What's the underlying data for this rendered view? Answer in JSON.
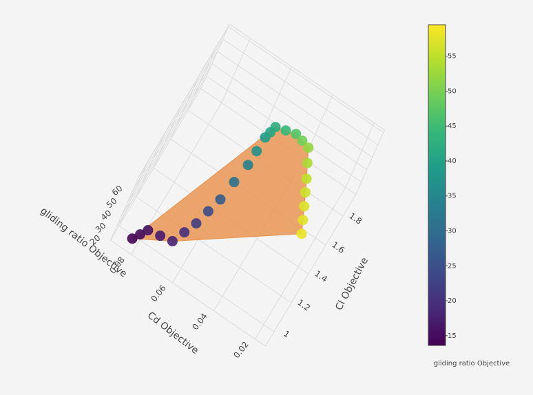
{
  "chart_data": {
    "type": "scatter3d",
    "xaxis_title": "Cd Objective",
    "yaxis_title": "Cl Objective",
    "zaxis_title": "gliding ratio Objective",
    "xlim": [
      0.015,
      0.09
    ],
    "xticks": [
      0.02,
      0.04,
      0.06,
      0.08
    ],
    "ylim": [
      0.9,
      1.95
    ],
    "yticks": [
      1,
      1.2,
      1.4,
      1.6,
      1.8
    ],
    "zlim": [
      10,
      62
    ],
    "zticks": [
      20,
      30,
      40,
      50,
      60
    ],
    "grid": true,
    "mesh_color": "#e8914a",
    "series": [
      {
        "x": [
          0.0826,
          0.0807,
          0.0788,
          0.0734,
          0.068,
          0.0656,
          0.0632,
          0.0614,
          0.0595,
          0.0581,
          0.0566,
          0.0563,
          0.056,
          0.0552,
          0.0544,
          0.05,
          0.0456,
          0.0419,
          0.0382,
          0.0353,
          0.0323,
          0.0298,
          0.0273,
          0.0249,
          0.0225
        ],
        "y": [
          0.95,
          0.989,
          1.028,
          1.034,
          1.04,
          1.108,
          1.176,
          1.256,
          1.335,
          1.439,
          1.542,
          1.619,
          1.695,
          1.726,
          1.757,
          1.755,
          1.752,
          1.72,
          1.687,
          1.596,
          1.504,
          1.425,
          1.345,
          1.269,
          1.193
        ],
        "z": [
          14,
          15,
          16,
          17,
          18,
          20,
          22,
          24.5,
          27,
          30.5,
          34,
          36.5,
          39,
          40.5,
          42,
          44.5,
          47,
          49.5,
          52,
          53.5,
          55,
          56,
          57,
          57.5,
          58
        ]
      }
    ],
    "colorbar": {
      "title": "gliding ratio Objective",
      "cmin": 13.6,
      "cmax": 59.5,
      "ticks": [
        15,
        20,
        25,
        30,
        35,
        40,
        45,
        50,
        55
      ],
      "colorscale": [
        "#440154",
        "#482878",
        "#3e4989",
        "#31688e",
        "#26828e",
        "#1f9e89",
        "#35b779",
        "#6ece58",
        "#b5de2b",
        "#fde725"
      ]
    }
  }
}
